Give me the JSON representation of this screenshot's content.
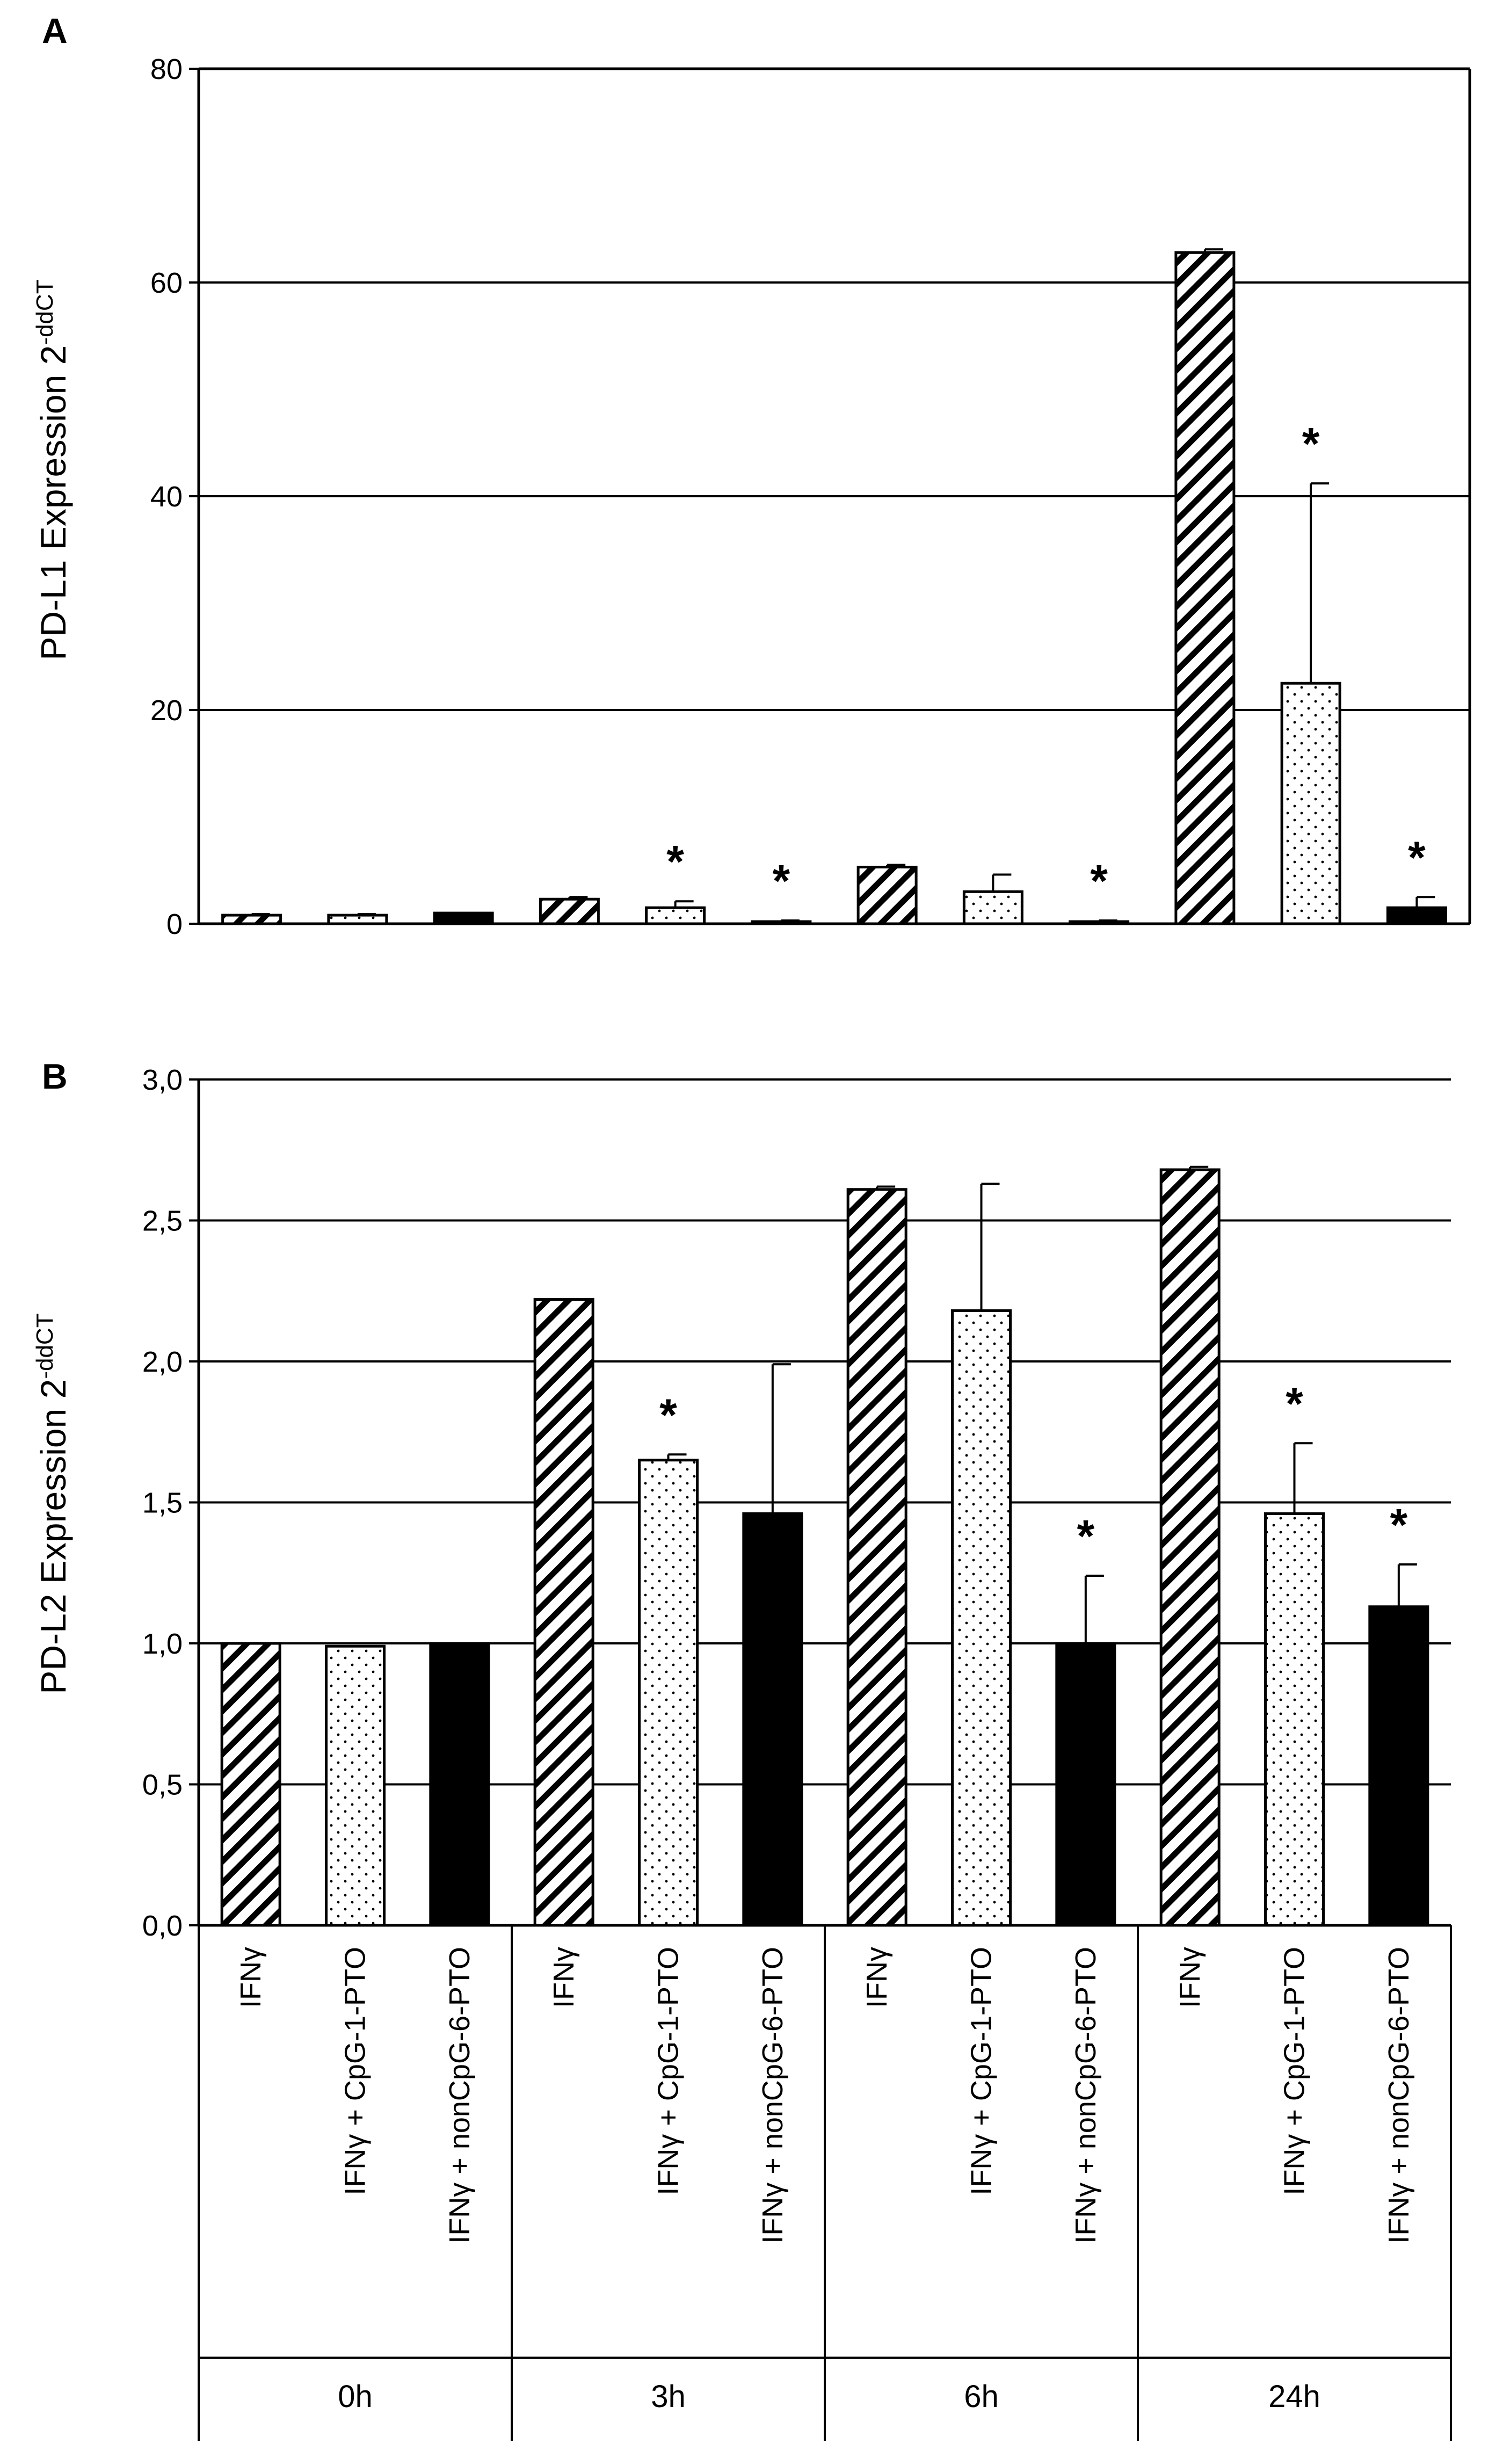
{
  "chart_data": [
    {
      "type": "bar",
      "panel": "A",
      "ylabel_main": "PD-L1 Expression 2",
      "ylabel_sup": "-ddCT",
      "ylim": [
        0,
        80
      ],
      "yticks": [
        "0",
        "20",
        "40",
        "60",
        "80"
      ],
      "ytick_values": [
        0,
        20,
        40,
        60,
        80
      ],
      "timepoints": [
        "0h",
        "3h",
        "6h",
        "24h"
      ],
      "series": [
        {
          "name": "IFNγ",
          "pattern": "hatch",
          "values": [
            0.8,
            2.3,
            5.3,
            62.8
          ],
          "errors": [
            0.1,
            0.2,
            0.2,
            0.3
          ],
          "significant": [
            false,
            false,
            false,
            false
          ]
        },
        {
          "name": "IFNγ + CpG-1-PTO",
          "pattern": "dots",
          "values": [
            0.8,
            1.5,
            3.0,
            22.5
          ],
          "errors": [
            0.1,
            0.6,
            1.6,
            18.7
          ],
          "significant": [
            false,
            true,
            false,
            true
          ]
        },
        {
          "name": "IFNγ + nonCpG-6-PTO",
          "pattern": "solid",
          "values": [
            1.0,
            0.2,
            0.2,
            1.5
          ],
          "errors": [
            0.0,
            0.1,
            0.1,
            1.0
          ],
          "significant": [
            false,
            true,
            true,
            true
          ]
        }
      ],
      "significance_mark": "*"
    },
    {
      "type": "bar",
      "panel": "B",
      "ylabel_main": "PD-L2 Expression 2",
      "ylabel_sup": "-ddCT",
      "ylim": [
        0,
        3.0
      ],
      "yticks": [
        "0,0",
        "0,5",
        "1,0",
        "1,5",
        "2,0",
        "2,5",
        "3,0"
      ],
      "ytick_values": [
        0,
        0.5,
        1.0,
        1.5,
        2.0,
        2.5,
        3.0
      ],
      "timepoints": [
        "0h",
        "3h",
        "6h",
        "24h"
      ],
      "series": [
        {
          "name": "IFNγ",
          "pattern": "hatch",
          "values": [
            1.0,
            2.22,
            2.61,
            2.68
          ],
          "errors": [
            0,
            0,
            0.01,
            0.01
          ],
          "significant": [
            false,
            false,
            false,
            false
          ]
        },
        {
          "name": "IFNγ + CpG-1-PTO",
          "pattern": "dots",
          "values": [
            0.99,
            1.65,
            2.18,
            1.46
          ],
          "errors": [
            0.0,
            0.02,
            0.45,
            0.25
          ],
          "significant": [
            false,
            true,
            false,
            true
          ]
        },
        {
          "name": "IFNγ + nonCpG-6-PTO",
          "pattern": "solid",
          "values": [
            1.0,
            1.46,
            1.0,
            1.13
          ],
          "errors": [
            0,
            0.53,
            0.24,
            0.15
          ],
          "significant": [
            false,
            false,
            true,
            true
          ]
        }
      ],
      "significance_mark": "*"
    }
  ],
  "x_axis": {
    "category_labels": [
      "IFNγ",
      "IFNγ + CpG-1-PTO",
      "IFNγ + nonCpG-6-PTO"
    ],
    "time_labels": [
      "0h",
      "3h",
      "6h",
      "24h"
    ]
  }
}
